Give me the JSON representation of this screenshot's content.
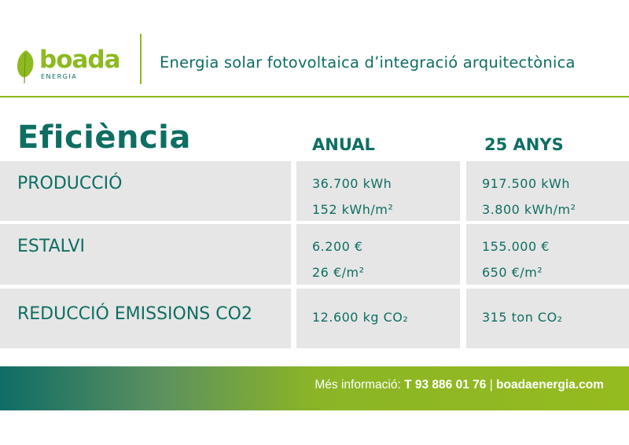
{
  "header": {
    "brand": "boada",
    "brand_sub": "ENERGIA",
    "tagline": "Energia solar fotovoltaica d’integració arquitectònica"
  },
  "table": {
    "title": "Eficiència",
    "columns": [
      "ANUAL",
      "25 ANYS"
    ],
    "rows": [
      {
        "label": "PRODUCCIÓ",
        "annual": [
          "36.700 kWh",
          "152 kWh/m²"
        ],
        "years25": [
          "917.500 kWh",
          "3.800 kWh/m²"
        ]
      },
      {
        "label": "ESTALVI",
        "annual": [
          "6.200 €",
          "26 €/m²"
        ],
        "years25": [
          "155.000 €",
          "650 €/m²"
        ]
      },
      {
        "label": "REDUCCIÓ EMISSIONS CO2",
        "annual": [
          "12.600 kg CO₂"
        ],
        "years25": [
          "315 ton CO₂"
        ]
      }
    ]
  },
  "footer": {
    "prefix": "Més informació:",
    "phone": "T 93 886 01 76",
    "sep": "|",
    "website": "boadaenergia.com"
  },
  "colors": {
    "teal": "#0e6e63",
    "lime": "#8dba1f",
    "cell": "#e6e6e6"
  }
}
